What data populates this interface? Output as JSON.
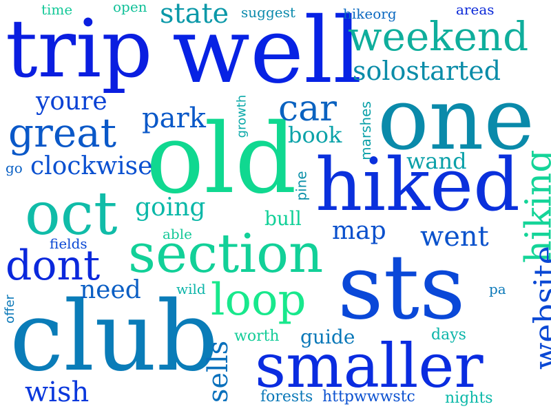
{
  "words": [
    {
      "text": "trip",
      "color": "#0a1ee0"
    },
    {
      "text": "well",
      "color": "#0722e4"
    },
    {
      "text": "weekend",
      "color": "#0fae9c"
    },
    {
      "text": "one",
      "color": "#0a8aaa"
    },
    {
      "text": "old",
      "color": "#10d890"
    },
    {
      "text": "hiked",
      "color": "#0a30dc"
    },
    {
      "text": "sts",
      "color": "#0a48d8"
    },
    {
      "text": "club",
      "color": "#0a7cb8"
    },
    {
      "text": "smaller",
      "color": "#0a2ce0"
    },
    {
      "text": "section",
      "color": "#12d098"
    },
    {
      "text": "oct",
      "color": "#10bca8"
    },
    {
      "text": "great",
      "color": "#0a58c8"
    },
    {
      "text": "dont",
      "color": "#0a28dc"
    },
    {
      "text": "loop",
      "color": "#18e88c"
    },
    {
      "text": "car",
      "color": "#0a62c0"
    },
    {
      "text": "solostarted",
      "color": "#0a8ca8"
    },
    {
      "text": "state",
      "color": "#0a98a8"
    },
    {
      "text": "wish",
      "color": "#0a38dc"
    },
    {
      "text": "going",
      "color": "#0ab8a8"
    },
    {
      "text": "clockwise",
      "color": "#0a50d0"
    },
    {
      "text": "youre",
      "color": "#0a42d4"
    },
    {
      "text": "went",
      "color": "#0a52cc"
    },
    {
      "text": "need",
      "color": "#0a5ec4"
    },
    {
      "text": "wand",
      "color": "#0aa0a8"
    },
    {
      "text": "map",
      "color": "#0a50cc"
    },
    {
      "text": "park",
      "color": "#0a58c8"
    },
    {
      "text": "book",
      "color": "#0aa2a8"
    },
    {
      "text": "guide",
      "color": "#0a78b8"
    },
    {
      "text": "bull",
      "color": "#12d098"
    },
    {
      "text": "hiking",
      "color": "#14d498"
    },
    {
      "text": "website",
      "color": "#0a48d4"
    },
    {
      "text": "sells",
      "color": "#0a70bc"
    },
    {
      "text": "httpwwwstc",
      "color": "#0a50d0"
    },
    {
      "text": "forests",
      "color": "#0a78b8"
    },
    {
      "text": "nights",
      "color": "#0ab8a8"
    },
    {
      "text": "worth",
      "color": "#14cc98"
    },
    {
      "text": "days",
      "color": "#0ab4a8"
    },
    {
      "text": "wild",
      "color": "#0ab4a8"
    },
    {
      "text": "able",
      "color": "#14c898"
    },
    {
      "text": "fields",
      "color": "#0a48d4"
    },
    {
      "text": "offer",
      "color": "#0a78b8"
    },
    {
      "text": "go",
      "color": "#0a60c4"
    },
    {
      "text": "pa",
      "color": "#0a78b8"
    },
    {
      "text": "pine",
      "color": "#0a90a8"
    },
    {
      "text": "growth",
      "color": "#0aa8a8"
    },
    {
      "text": "marshes",
      "color": "#0aa0a8"
    },
    {
      "text": "time",
      "color": "#14c898"
    },
    {
      "text": "open",
      "color": "#10c098"
    },
    {
      "text": "suggest",
      "color": "#0a8aac"
    },
    {
      "text": "hikeorg",
      "color": "#0a68c0"
    },
    {
      "text": "areas",
      "color": "#0a28d8"
    }
  ]
}
